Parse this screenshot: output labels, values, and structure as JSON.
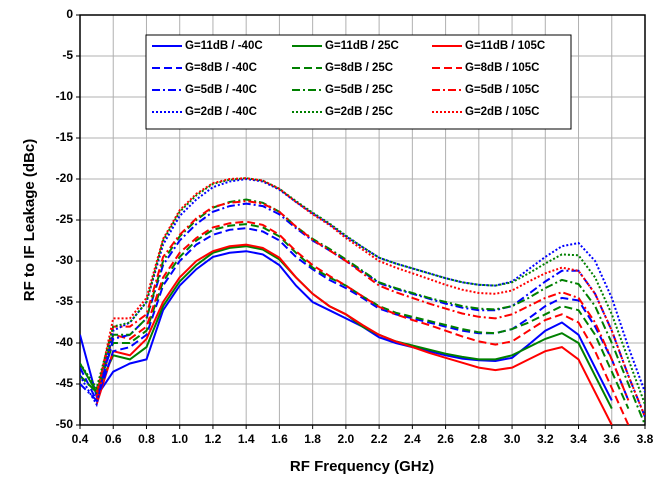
{
  "chart_data": {
    "type": "line",
    "x_label": "RF Frequency (GHz)",
    "y_label": "RF to IF Leakage (dBc)",
    "x": [
      0.4,
      0.5,
      0.6,
      0.7,
      0.8,
      0.9,
      1.0,
      1.1,
      1.2,
      1.3,
      1.4,
      1.5,
      1.6,
      1.7,
      1.8,
      1.9,
      2.0,
      2.1,
      2.2,
      2.3,
      2.4,
      2.5,
      2.6,
      2.7,
      2.8,
      2.9,
      3.0,
      3.1,
      3.2,
      3.3,
      3.4,
      3.5,
      3.6,
      3.7,
      3.8
    ],
    "xlim": [
      0.4,
      3.8
    ],
    "xticks": [
      0.4,
      0.6,
      0.8,
      {
        "value": 1,
        "label": "1.0"
      },
      1.2,
      1.4,
      1.6,
      1.8,
      {
        "value": 2,
        "label": "2.0"
      },
      2.2,
      2.4,
      2.6,
      2.8,
      {
        "value": 3,
        "label": "3.0"
      },
      3.2,
      3.4,
      3.6,
      3.8
    ],
    "ylim": [
      -50,
      0
    ],
    "yticks": [
      0,
      -5,
      -10,
      -15,
      -20,
      -25,
      -30,
      -35,
      -40,
      -45,
      -50
    ],
    "grid": true,
    "series": [
      {
        "name": "G=11dB / -40C",
        "color": "#0000ff",
        "dash": "solid",
        "values": [
          -39,
          -46.5,
          -43.5,
          -42.5,
          -42,
          -36,
          -33,
          -31,
          -29.5,
          -29,
          -28.8,
          -29.2,
          -30.5,
          -33,
          -35,
          -36,
          -37,
          -38,
          -39.3,
          -40,
          -40.5,
          -41,
          -41.5,
          -41.9,
          -42.1,
          -42.2,
          -41.8,
          -40.2,
          -38.5,
          -37.5,
          -39,
          -43,
          -47,
          null,
          null
        ]
      },
      {
        "name": "G=11dB / 25C",
        "color": "#008000",
        "dash": "solid",
        "values": [
          -42.5,
          -46,
          -41.5,
          -42,
          -40.5,
          -35.5,
          -32.5,
          -30.5,
          -29,
          -28.4,
          -28.2,
          -28.6,
          -29.8,
          -32,
          -34,
          -35.5,
          -36.5,
          -38,
          -39,
          -39.8,
          -40.3,
          -40.8,
          -41.3,
          -41.7,
          -42,
          -42,
          -41.5,
          -40.5,
          -39.5,
          -38.8,
          -40,
          -44,
          -48,
          null,
          null
        ]
      },
      {
        "name": "G=11dB / 105C",
        "color": "#ff0000",
        "dash": "solid",
        "values": [
          null,
          -47.5,
          -41,
          -41.5,
          -39.5,
          -35,
          -32,
          -30,
          -28.8,
          -28.2,
          -28,
          -28.4,
          -29.6,
          -32,
          -34,
          -35.5,
          -36.5,
          -37.8,
          -39,
          -39.8,
          -40.5,
          -41.2,
          -41.8,
          -42.4,
          -43,
          -43.3,
          -43,
          -42,
          -41,
          -40.5,
          -42,
          -46,
          -50,
          null,
          null
        ]
      },
      {
        "name": "G=8dB / -40C",
        "color": "#0000ff",
        "dash": "dashed",
        "values": [
          -43,
          -47,
          -41,
          -40.5,
          -39,
          -33,
          -30,
          -28,
          -26.8,
          -26.2,
          -26,
          -26.4,
          -27.5,
          -29.5,
          -31,
          -32.3,
          -33.3,
          -34.5,
          -35.8,
          -36.5,
          -37,
          -37.5,
          -38,
          -38.5,
          -38.8,
          -38.8,
          -38.3,
          -37,
          -35.5,
          -34.5,
          -34.8,
          -38,
          -42,
          -47,
          null
        ]
      },
      {
        "name": "G=8dB / 25C",
        "color": "#008000",
        "dash": "dashed",
        "values": [
          -44,
          -46,
          -40,
          -40,
          -38.5,
          -32.5,
          -29.5,
          -27.5,
          -26.2,
          -25.7,
          -25.5,
          -25.9,
          -27,
          -29,
          -30.8,
          -32,
          -33,
          -34.3,
          -35.5,
          -36.3,
          -36.8,
          -37.3,
          -37.8,
          -38.3,
          -38.7,
          -38.8,
          -38.3,
          -37.5,
          -36.5,
          -35.5,
          -36,
          -39,
          -43.5,
          -48,
          null
        ]
      },
      {
        "name": "G=8dB / 105C",
        "color": "#ff0000",
        "dash": "dashed",
        "values": [
          null,
          -47,
          -39,
          -39.5,
          -38,
          -32,
          -29,
          -27.2,
          -25.9,
          -25.4,
          -25.2,
          -25.6,
          -26.8,
          -28.8,
          -30.5,
          -31.8,
          -33,
          -34.3,
          -35.6,
          -36.5,
          -37.2,
          -37.8,
          -38.5,
          -39.2,
          -39.8,
          -40.2,
          -39.8,
          -38.5,
          -37.2,
          -36.5,
          -37.5,
          -41,
          -45.5,
          -50,
          null
        ]
      },
      {
        "name": "G=5dB / -40C",
        "color": "#0000ff",
        "dash": "dashdot",
        "values": [
          -45,
          -47,
          -39.5,
          -39,
          -37,
          -30.5,
          -27.5,
          -25.5,
          -24,
          -23.3,
          -23,
          -23.3,
          -24.3,
          -26,
          -27.5,
          -28.7,
          -30,
          -31.3,
          -32.7,
          -33.4,
          -34,
          -34.6,
          -35.2,
          -35.7,
          -36,
          -36,
          -35.5,
          -34,
          -32.5,
          -31.2,
          -31.2,
          -34,
          -38.5,
          -44,
          -49
        ]
      },
      {
        "name": "G=5dB / 25C",
        "color": "#008000",
        "dash": "dashdot",
        "values": [
          -44,
          -46,
          -39,
          -39,
          -37,
          -30,
          -27,
          -25,
          -23.5,
          -22.8,
          -22.5,
          -22.9,
          -24,
          -25.8,
          -27.3,
          -28.5,
          -29.8,
          -31.2,
          -32.6,
          -33.3,
          -33.9,
          -34.5,
          -35,
          -35.5,
          -35.8,
          -35.9,
          -35.5,
          -34.5,
          -33.3,
          -32.3,
          -32.8,
          -35.5,
          -40,
          -45,
          -50
        ]
      },
      {
        "name": "G=5dB / 105C",
        "color": "#ff0000",
        "dash": "dashdot",
        "values": [
          null,
          -46,
          -38,
          -38,
          -36.5,
          -29.5,
          -26.8,
          -24.8,
          -23.4,
          -22.9,
          -22.7,
          -23,
          -24,
          -25.8,
          -27.4,
          -28.7,
          -30,
          -31.5,
          -33,
          -33.8,
          -34.5,
          -35.2,
          -35.8,
          -36.4,
          -36.8,
          -37,
          -36.5,
          -35.5,
          -34.5,
          -33.8,
          -34.5,
          -37.5,
          -42,
          -47,
          null
        ]
      },
      {
        "name": "G=2dB / -40C",
        "color": "#0000ff",
        "dash": "dotted",
        "values": [
          -44,
          -47.5,
          -38.5,
          -37.5,
          -35,
          -28,
          -24.5,
          -22.5,
          -21,
          -20.3,
          -20,
          -20.3,
          -21.3,
          -22.8,
          -24.2,
          -25.5,
          -27,
          -28.3,
          -29.6,
          -30.3,
          -30.9,
          -31.5,
          -32.1,
          -32.6,
          -32.9,
          -33,
          -32.5,
          -31,
          -29.5,
          -28.2,
          -27.8,
          -30,
          -34.5,
          -40.5,
          -46
        ]
      },
      {
        "name": "G=2dB / 25C",
        "color": "#008000",
        "dash": "dotted",
        "values": [
          -42.5,
          -45.5,
          -38,
          -37.5,
          -35,
          -27.5,
          -24,
          -22,
          -20.6,
          -20.1,
          -19.9,
          -20.2,
          -21.2,
          -22.7,
          -24.1,
          -25.4,
          -26.9,
          -28.3,
          -29.6,
          -30.3,
          -30.9,
          -31.5,
          -32.1,
          -32.6,
          -32.9,
          -33,
          -32.6,
          -31.5,
          -30.3,
          -29.2,
          -29.3,
          -32,
          -36.5,
          -42,
          -47.5
        ]
      },
      {
        "name": "G=2dB / 105C",
        "color": "#ff0000",
        "dash": "dotted",
        "values": [
          null,
          -46.5,
          -37,
          -37,
          -34.5,
          -27.3,
          -23.8,
          -21.8,
          -20.5,
          -20,
          -19.9,
          -20.2,
          -21.2,
          -22.8,
          -24.3,
          -25.6,
          -27.2,
          -28.6,
          -30,
          -30.8,
          -31.5,
          -32.2,
          -32.9,
          -33.5,
          -33.9,
          -34,
          -33.6,
          -32.5,
          -31.5,
          -30.8,
          -31.2,
          -34,
          -38.5,
          -44,
          -49
        ]
      }
    ]
  }
}
